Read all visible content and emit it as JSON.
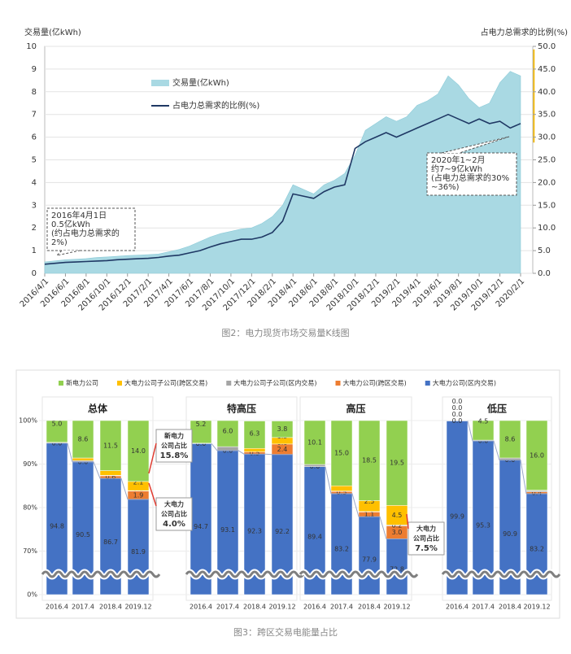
{
  "chart_data": [
    {
      "type": "area_line",
      "y_label": "交易量(亿kWh)",
      "y2_label": "占电力总需求的比例(%)",
      "caption": "图2：电力现货市场交易量K线图",
      "x": [
        "2016/4/1",
        null,
        "2016/6/1",
        null,
        "2016/8/1",
        null,
        "2016/10/1",
        null,
        "2016/12/1",
        null,
        "2017/2/1",
        null,
        "2017/4/1",
        null,
        "2017/6/1",
        null,
        "2017/8/1",
        null,
        "2017/10/1",
        null,
        "2017/12/1",
        null,
        "2018/2/1",
        null,
        "2018/4/1",
        null,
        "2018/6/1",
        null,
        "2018/8/1",
        null,
        "2018/10/1",
        null,
        "2018/12/1",
        null,
        "2019/2/1",
        null,
        "2019/4/1",
        null,
        "2019/6/1",
        null,
        "2019/8/1",
        null,
        "2019/10/1",
        null,
        "2019/12/1",
        null,
        "2020/2/1"
      ],
      "series": [
        {
          "name": "交易量(亿kWh)",
          "color": "#a9d9e3",
          "axis": "y",
          "values": [
            0.5,
            0.55,
            0.6,
            0.62,
            0.65,
            0.7,
            0.72,
            0.75,
            0.78,
            0.8,
            0.82,
            0.85,
            0.95,
            1.05,
            1.2,
            1.4,
            1.6,
            1.75,
            1.85,
            1.95,
            2.0,
            2.2,
            2.5,
            3.0,
            3.9,
            3.7,
            3.5,
            3.9,
            4.1,
            4.4,
            5.2,
            6.3,
            6.6,
            6.9,
            6.7,
            6.9,
            7.4,
            7.6,
            7.9,
            8.7,
            8.3,
            7.7,
            7.3,
            7.5,
            8.4,
            8.9,
            8.7
          ]
        },
        {
          "name": "占电力总需求的比例(%)",
          "color": "#1f3864",
          "axis": "y2",
          "values": [
            2.0,
            2.2,
            2.4,
            2.5,
            2.6,
            2.7,
            2.8,
            3.0,
            3.1,
            3.2,
            3.3,
            3.5,
            3.8,
            4.0,
            4.5,
            5.0,
            5.8,
            6.5,
            7.0,
            7.5,
            7.5,
            8.0,
            9.0,
            11.5,
            17.5,
            17.0,
            16.5,
            18.0,
            19.0,
            19.5,
            27.5,
            29.0,
            30.0,
            31.0,
            30.0,
            31.0,
            32.0,
            33.0,
            34.0,
            35.0,
            34.0,
            33.0,
            34.0,
            33.0,
            33.5,
            32.0,
            33.0
          ]
        }
      ],
      "ylim": [
        0,
        10
      ],
      "yticks": [
        0,
        1,
        2,
        3,
        4,
        5,
        6,
        7,
        8,
        9,
        10
      ],
      "y2lim": [
        0,
        50
      ],
      "y2ticks": [
        {
          "value": 0,
          "label": "0.0"
        },
        {
          "value": 5,
          "label": "5.0"
        },
        {
          "value": 10,
          "label": "10.0"
        },
        {
          "value": 15,
          "label": "15.0"
        },
        {
          "value": 20,
          "label": "20.0"
        },
        {
          "value": 25,
          "label": "25.0"
        },
        {
          "value": 30,
          "label": "30.0"
        },
        {
          "value": 35,
          "label": "35.0"
        },
        {
          "value": 40,
          "label": "40.0"
        },
        {
          "value": 45,
          "label": "45.0"
        },
        {
          "value": 50,
          "label": "50.0"
        }
      ],
      "grid": true,
      "annotations": [
        {
          "lines": [
            "2016年4月1日",
            "0.5亿kWh",
            "(约占电力总需求的",
            "2%)"
          ]
        },
        {
          "lines": [
            "2020年1~2月",
            "约7~9亿kWh",
            "(占电力总需求的30%",
            "~36%)"
          ]
        }
      ]
    },
    {
      "type": "stacked_bar_panels",
      "caption": "图3：跨区交易电能量占比",
      "legend": [
        {
          "name": "新电力公司",
          "color": "#92d050"
        },
        {
          "name": "大电力公司子公司(跨区交易)",
          "color": "#ffc000"
        },
        {
          "name": "大电力公司子公司(区内交易)",
          "color": "#a5a5a5"
        },
        {
          "name": "大电力公司(跨区交易)",
          "color": "#ed7d31"
        },
        {
          "name": "大电力公司(区内交易)",
          "color": "#4472c4"
        }
      ],
      "ylim": [
        0,
        100
      ],
      "yticks": [
        {
          "value": 0,
          "label": "0%"
        },
        {
          "value": 70,
          "label": "70%"
        },
        {
          "value": 80,
          "label": "80%"
        },
        {
          "value": 90,
          "label": "90%"
        },
        {
          "value": 100,
          "label": "100%"
        }
      ],
      "panels": [
        {
          "title": "总体",
          "categories": [
            "2016.4",
            "2017.4",
            "2018.4",
            "2019.12"
          ],
          "series": [
            {
              "values": [
                94.8,
                90.5,
                86.7,
                81.9
              ],
              "value_labels": [
                "94.8",
                "90.5",
                "86.7",
                "81.9"
              ]
            },
            {
              "values": [
                0.0,
                0.0,
                0.6,
                1.9
              ],
              "value_labels": [
                "0.0",
                "0.0",
                "0.6",
                "1.9"
              ]
            },
            {
              "values": [
                0.2,
                0.3,
                0.1,
                0.1
              ],
              "value_labels": [
                "0.2",
                "0.3",
                "0.1",
                "0.1"
              ]
            },
            {
              "values": [
                0.0,
                0.6,
                1.1,
                2.1
              ],
              "value_labels": [
                "0.0",
                "0.6",
                "1.1",
                "2.1"
              ]
            },
            {
              "values": [
                5.0,
                8.6,
                11.5,
                14.0
              ],
              "value_labels": [
                "5.0",
                "8.6",
                "11.5",
                "14.0"
              ]
            }
          ]
        },
        {
          "title": "特高压",
          "categories": [
            "2016.4",
            "2017.4",
            "2018.4",
            "2019.12"
          ],
          "series": [
            {
              "values": [
                94.7,
                93.1,
                92.3,
                92.2
              ],
              "value_labels": [
                "94.7",
                "93.1",
                "92.3",
                "92.2"
              ]
            },
            {
              "values": [
                0.0,
                0.0,
                0.5,
                2.4
              ],
              "value_labels": [
                "0.0",
                "0.0",
                "0.5",
                "2.4"
              ]
            },
            {
              "values": [
                0.1,
                0.9,
                0.0,
                0.0
              ],
              "value_labels": [
                "0.1",
                "0.9",
                "0.0",
                "0.0"
              ]
            },
            {
              "values": [
                0.0,
                0.0,
                0.8,
                1.5
              ],
              "value_labels": [
                "0.0",
                "0.0",
                "0.8",
                "1.5"
              ]
            },
            {
              "values": [
                5.2,
                6.0,
                6.3,
                3.8
              ],
              "value_labels": [
                "5.2",
                "6.0",
                "6.3",
                "3.8"
              ]
            }
          ]
        },
        {
          "title": "高压",
          "categories": [
            "2016.4",
            "2017.4",
            "2018.4",
            "2019.12"
          ],
          "series": [
            {
              "values": [
                89.4,
                83.2,
                77.9,
                72.8
              ],
              "value_labels": [
                "89.4",
                "83.2",
                "77.9",
                "72.8"
              ]
            },
            {
              "values": [
                0.0,
                0.5,
                1.1,
                3.0
              ],
              "value_labels": [
                "0.0",
                "0.5",
                "1.1",
                "3.0"
              ]
            },
            {
              "values": [
                0.5,
                0.1,
                0.1,
                0.2
              ],
              "value_labels": [
                "0.5",
                "0.1",
                "0.1",
                "0.2"
              ]
            },
            {
              "values": [
                0.0,
                1.2,
                2.5,
                4.5
              ],
              "value_labels": [
                "0.0",
                "1.2",
                "2.5",
                "4.5"
              ]
            },
            {
              "values": [
                10.1,
                15.0,
                18.5,
                19.5
              ],
              "value_labels": [
                "10.1",
                "15.0",
                "18.5",
                "19.5"
              ]
            }
          ]
        },
        {
          "title": "低压",
          "categories": [
            "2016.4",
            "2017.4",
            "2018.4",
            "2019.12"
          ],
          "series": [
            {
              "values": [
                99.9,
                95.3,
                90.9,
                83.2
              ],
              "value_labels": [
                "99.9",
                "95.3",
                "90.9",
                "83.2"
              ]
            },
            {
              "values": [
                0.0,
                0.0,
                0.0,
                0.4
              ],
              "value_labels": [
                "0.0",
                "0.0",
                "0.0",
                "0.4"
              ]
            },
            {
              "values": [
                0.0,
                0.2,
                0.5,
                0.3
              ],
              "value_labels": [
                "0.0",
                "0.2",
                "0.5",
                "0.3"
              ]
            },
            {
              "values": [
                0.0,
                0.0,
                0.0,
                0.1
              ],
              "value_labels": [
                "0.0",
                "0.0",
                "0.0",
                "0.1"
              ]
            },
            {
              "values": [
                0.0,
                4.5,
                8.6,
                16.0
              ],
              "value_labels": [
                "0.0",
                "4.5",
                "8.6",
                "16.0"
              ]
            }
          ]
        }
      ],
      "annotations": [
        {
          "lines": [
            "新电力",
            "公司占比",
            "15.8%"
          ]
        },
        {
          "lines": [
            "大电力",
            "公司占比",
            "4.0%"
          ]
        },
        {
          "lines": [
            "大电力",
            "公司占比",
            "7.5%"
          ]
        }
      ]
    }
  ]
}
